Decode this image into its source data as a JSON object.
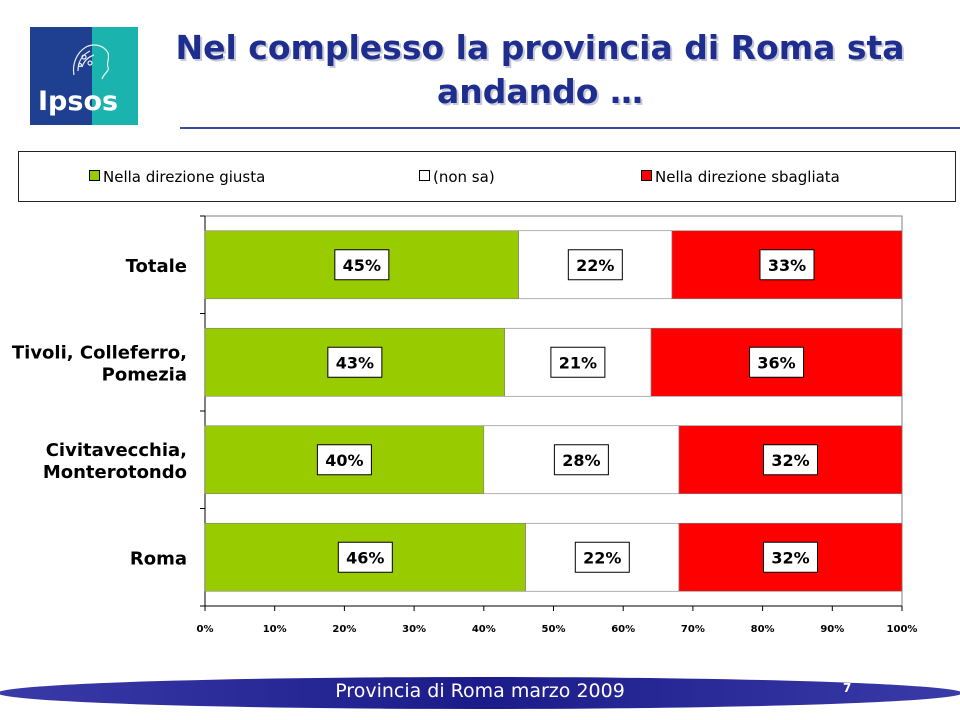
{
  "logo": {
    "text": "Ipsos"
  },
  "title": {
    "line1": "Nel complesso la provincia di Roma sta",
    "line2": "andando …"
  },
  "legend": {
    "items": [
      {
        "label": "Nella direzione giusta",
        "color": "#99cc00"
      },
      {
        "label": "(non sa)",
        "color": "#ffffff"
      },
      {
        "label": "Nella direzione sbagliata",
        "color": "#ff0000"
      }
    ]
  },
  "chart_data": {
    "type": "bar",
    "orientation": "horizontal",
    "stacked": true,
    "categories": [
      [
        "Totale"
      ],
      [
        "Tivoli, Colleferro,",
        "Pomezia"
      ],
      [
        "Civitavecchia,",
        "Monterotondo"
      ],
      [
        "Roma"
      ]
    ],
    "series": [
      {
        "name": "Nella direzione giusta",
        "color": "#99cc00",
        "values": [
          45,
          43,
          40,
          46
        ]
      },
      {
        "name": "(non sa)",
        "color": "#ffffff",
        "values": [
          22,
          21,
          28,
          22
        ]
      },
      {
        "name": "Nella direzione sbagliata",
        "color": "#ff0000",
        "values": [
          33,
          36,
          32,
          32
        ]
      }
    ],
    "xlim": [
      0,
      100
    ],
    "xticks": [
      "0%",
      "10%",
      "20%",
      "30%",
      "40%",
      "50%",
      "60%",
      "70%",
      "80%",
      "90%",
      "100%"
    ],
    "value_suffix": "%",
    "legend_position": "top",
    "grid": false
  },
  "footer": {
    "text": "Provincia di Roma marzo 2009",
    "page": "7"
  }
}
